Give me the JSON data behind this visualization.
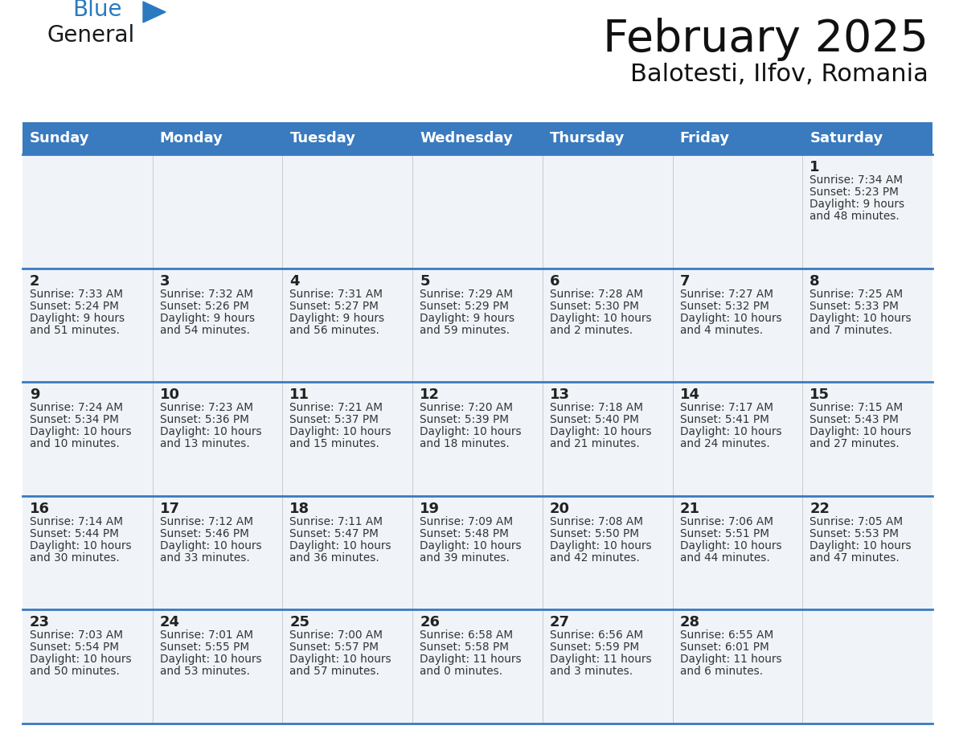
{
  "title": "February 2025",
  "subtitle": "Balotesti, Ilfov, Romania",
  "days_of_week": [
    "Sunday",
    "Monday",
    "Tuesday",
    "Wednesday",
    "Thursday",
    "Friday",
    "Saturday"
  ],
  "header_bg": "#3a7abf",
  "header_text": "#ffffff",
  "cell_bg": "#f0f4f8",
  "border_color": "#3a7abf",
  "day_num_color": "#222222",
  "info_color": "#333333",
  "logo_color_general": "#1a1a1a",
  "logo_color_blue": "#2a7abf",
  "logo_triangle_color": "#2a7abf",
  "calendar_data": [
    [
      null,
      null,
      null,
      null,
      null,
      null,
      {
        "day": 1,
        "sunrise": "7:34 AM",
        "sunset": "5:23 PM",
        "dl1": "Daylight: 9 hours",
        "dl2": "and 48 minutes."
      }
    ],
    [
      {
        "day": 2,
        "sunrise": "7:33 AM",
        "sunset": "5:24 PM",
        "dl1": "Daylight: 9 hours",
        "dl2": "and 51 minutes."
      },
      {
        "day": 3,
        "sunrise": "7:32 AM",
        "sunset": "5:26 PM",
        "dl1": "Daylight: 9 hours",
        "dl2": "and 54 minutes."
      },
      {
        "day": 4,
        "sunrise": "7:31 AM",
        "sunset": "5:27 PM",
        "dl1": "Daylight: 9 hours",
        "dl2": "and 56 minutes."
      },
      {
        "day": 5,
        "sunrise": "7:29 AM",
        "sunset": "5:29 PM",
        "dl1": "Daylight: 9 hours",
        "dl2": "and 59 minutes."
      },
      {
        "day": 6,
        "sunrise": "7:28 AM",
        "sunset": "5:30 PM",
        "dl1": "Daylight: 10 hours",
        "dl2": "and 2 minutes."
      },
      {
        "day": 7,
        "sunrise": "7:27 AM",
        "sunset": "5:32 PM",
        "dl1": "Daylight: 10 hours",
        "dl2": "and 4 minutes."
      },
      {
        "day": 8,
        "sunrise": "7:25 AM",
        "sunset": "5:33 PM",
        "dl1": "Daylight: 10 hours",
        "dl2": "and 7 minutes."
      }
    ],
    [
      {
        "day": 9,
        "sunrise": "7:24 AM",
        "sunset": "5:34 PM",
        "dl1": "Daylight: 10 hours",
        "dl2": "and 10 minutes."
      },
      {
        "day": 10,
        "sunrise": "7:23 AM",
        "sunset": "5:36 PM",
        "dl1": "Daylight: 10 hours",
        "dl2": "and 13 minutes."
      },
      {
        "day": 11,
        "sunrise": "7:21 AM",
        "sunset": "5:37 PM",
        "dl1": "Daylight: 10 hours",
        "dl2": "and 15 minutes."
      },
      {
        "day": 12,
        "sunrise": "7:20 AM",
        "sunset": "5:39 PM",
        "dl1": "Daylight: 10 hours",
        "dl2": "and 18 minutes."
      },
      {
        "day": 13,
        "sunrise": "7:18 AM",
        "sunset": "5:40 PM",
        "dl1": "Daylight: 10 hours",
        "dl2": "and 21 minutes."
      },
      {
        "day": 14,
        "sunrise": "7:17 AM",
        "sunset": "5:41 PM",
        "dl1": "Daylight: 10 hours",
        "dl2": "and 24 minutes."
      },
      {
        "day": 15,
        "sunrise": "7:15 AM",
        "sunset": "5:43 PM",
        "dl1": "Daylight: 10 hours",
        "dl2": "and 27 minutes."
      }
    ],
    [
      {
        "day": 16,
        "sunrise": "7:14 AM",
        "sunset": "5:44 PM",
        "dl1": "Daylight: 10 hours",
        "dl2": "and 30 minutes."
      },
      {
        "day": 17,
        "sunrise": "7:12 AM",
        "sunset": "5:46 PM",
        "dl1": "Daylight: 10 hours",
        "dl2": "and 33 minutes."
      },
      {
        "day": 18,
        "sunrise": "7:11 AM",
        "sunset": "5:47 PM",
        "dl1": "Daylight: 10 hours",
        "dl2": "and 36 minutes."
      },
      {
        "day": 19,
        "sunrise": "7:09 AM",
        "sunset": "5:48 PM",
        "dl1": "Daylight: 10 hours",
        "dl2": "and 39 minutes."
      },
      {
        "day": 20,
        "sunrise": "7:08 AM",
        "sunset": "5:50 PM",
        "dl1": "Daylight: 10 hours",
        "dl2": "and 42 minutes."
      },
      {
        "day": 21,
        "sunrise": "7:06 AM",
        "sunset": "5:51 PM",
        "dl1": "Daylight: 10 hours",
        "dl2": "and 44 minutes."
      },
      {
        "day": 22,
        "sunrise": "7:05 AM",
        "sunset": "5:53 PM",
        "dl1": "Daylight: 10 hours",
        "dl2": "and 47 minutes."
      }
    ],
    [
      {
        "day": 23,
        "sunrise": "7:03 AM",
        "sunset": "5:54 PM",
        "dl1": "Daylight: 10 hours",
        "dl2": "and 50 minutes."
      },
      {
        "day": 24,
        "sunrise": "7:01 AM",
        "sunset": "5:55 PM",
        "dl1": "Daylight: 10 hours",
        "dl2": "and 53 minutes."
      },
      {
        "day": 25,
        "sunrise": "7:00 AM",
        "sunset": "5:57 PM",
        "dl1": "Daylight: 10 hours",
        "dl2": "and 57 minutes."
      },
      {
        "day": 26,
        "sunrise": "6:58 AM",
        "sunset": "5:58 PM",
        "dl1": "Daylight: 11 hours",
        "dl2": "and 0 minutes."
      },
      {
        "day": 27,
        "sunrise": "6:56 AM",
        "sunset": "5:59 PM",
        "dl1": "Daylight: 11 hours",
        "dl2": "and 3 minutes."
      },
      {
        "day": 28,
        "sunrise": "6:55 AM",
        "sunset": "6:01 PM",
        "dl1": "Daylight: 11 hours",
        "dl2": "and 6 minutes."
      },
      null
    ]
  ]
}
